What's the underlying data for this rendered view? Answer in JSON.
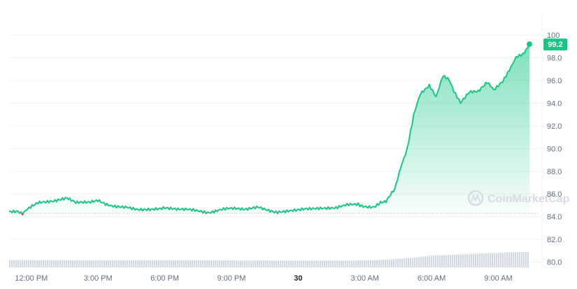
{
  "watermark": "CoinMarketCap",
  "colors": {
    "up": "#16c784",
    "down": "#ea3943",
    "grid": "#eff2f5",
    "volume": "#cfd6e4",
    "reference": "#b8c0cc"
  },
  "chart_data": {
    "type": "area",
    "ylim": [
      79.6,
      101
    ],
    "y_ticks": [
      "80.0",
      "82.0",
      "84.0",
      "86.0",
      "88.0",
      "90.0",
      "92.0",
      "94.0",
      "96.0",
      "98.0",
      "100"
    ],
    "y_tick_values": [
      80,
      82,
      84,
      86,
      88,
      90,
      92,
      94,
      96,
      98,
      100
    ],
    "x_ticks": [
      "12:00 PM",
      "3:00 PM",
      "6:00 PM",
      "9:00 PM",
      "30",
      "3:00 AM",
      "6:00 AM",
      "9:00 AM"
    ],
    "x_tick_hours": [
      0,
      3,
      6,
      9,
      12,
      15,
      18,
      21
    ],
    "bold_tick": "30",
    "x_range_hours": [
      -1.0,
      22.4
    ],
    "reference_value": 84.3,
    "current_value": "99.2",
    "price": {
      "x_hours": [
        -1.0,
        -0.6,
        -0.4,
        -0.1,
        0.3,
        1.0,
        1.6,
        2.0,
        2.6,
        3.0,
        3.4,
        3.9,
        4.3,
        4.8,
        5.4,
        6.0,
        6.6,
        7.0,
        7.5,
        8.0,
        8.5,
        9.0,
        9.6,
        10.2,
        11.0,
        11.7,
        12.3,
        13.0,
        13.7,
        14.2,
        14.7,
        15.0,
        15.4,
        15.7,
        15.95,
        16.15,
        16.35,
        16.6,
        16.9,
        17.2,
        17.5,
        17.9,
        18.2,
        18.5,
        18.8,
        19.0,
        19.3,
        19.7,
        20.1,
        20.5,
        20.8,
        21.2,
        21.5,
        21.8,
        22.1,
        22.4
      ],
      "values": [
        84.4,
        84.4,
        84.2,
        84.8,
        85.2,
        85.4,
        85.6,
        85.2,
        85.3,
        85.5,
        85.1,
        84.9,
        84.9,
        84.6,
        84.7,
        84.8,
        84.6,
        84.6,
        84.5,
        84.4,
        84.6,
        84.7,
        84.6,
        84.9,
        84.4,
        84.6,
        84.7,
        84.8,
        84.8,
        85.0,
        85.1,
        84.9,
        84.9,
        85.2,
        85.4,
        86.0,
        86.5,
        88.2,
        90.0,
        93.0,
        94.8,
        95.5,
        94.6,
        96.4,
        96.0,
        95.0,
        94.1,
        95.0,
        95.0,
        95.8,
        95.2,
        95.9,
        97.0,
        98.0,
        98.3,
        99.2
      ]
    },
    "volume": {
      "x_hours": [
        -1.0,
        14.0,
        15.0,
        16.0,
        17.0,
        18.0,
        19.0,
        20.0,
        21.0,
        22.4
      ],
      "levels": [
        0.52,
        0.48,
        0.5,
        0.55,
        0.66,
        0.84,
        0.9,
        0.97,
        1.03,
        1.11
      ]
    }
  }
}
